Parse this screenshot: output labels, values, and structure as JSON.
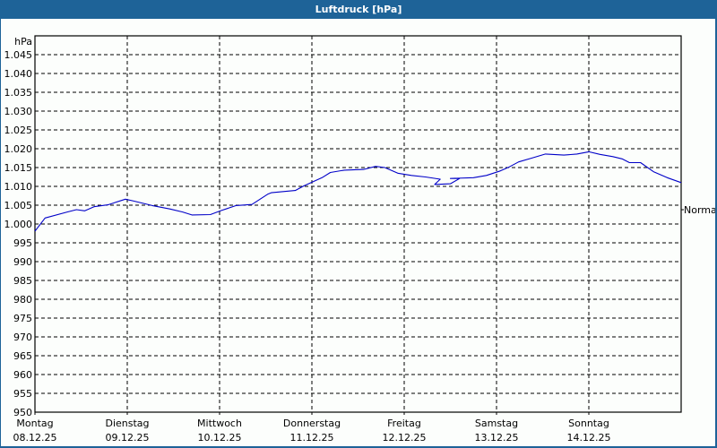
{
  "window": {
    "title": "Luftdruck [hPa]",
    "title_bar_color": "#1e6398",
    "background_color": "#fcfefc"
  },
  "chart_data": {
    "type": "line",
    "title": "Luftdruck [hPa]",
    "xlabel": "",
    "ylabel": "hPa",
    "ylim": [
      950,
      1045
    ],
    "y_ticks": [
      950,
      955,
      960,
      965,
      970,
      975,
      980,
      985,
      990,
      995,
      1000,
      1005,
      1010,
      1015,
      1020,
      1025,
      1030,
      1035,
      1040,
      1045
    ],
    "y_tick_labels": [
      "950",
      "955",
      "960",
      "965",
      "970",
      "975",
      "980",
      "985",
      "990",
      "995",
      "1.000",
      "1.005",
      "1.010",
      "1.015",
      "1.020",
      "1.025",
      "1.030",
      "1.035",
      "1.040",
      "1.045"
    ],
    "grid": true,
    "grid_style": "dashed",
    "legend": null,
    "x_categories": [
      {
        "day": "Montag",
        "date": "08.12.25"
      },
      {
        "day": "Dienstag",
        "date": "09.12.25"
      },
      {
        "day": "Mittwoch",
        "date": "10.12.25"
      },
      {
        "day": "Donnerstag",
        "date": "11.12.25"
      },
      {
        "day": "Freitag",
        "date": "12.12.25"
      },
      {
        "day": "Samstag",
        "date": "13.12.25"
      },
      {
        "day": "Sonntag",
        "date": "14.12.25"
      }
    ],
    "reference_line": {
      "label": "Normal",
      "value": 1003.8
    },
    "series": [
      {
        "name": "Luftdruck",
        "color": "#0000c8",
        "x_days": [
          0.0,
          0.11,
          0.35,
          0.45,
          0.54,
          0.64,
          0.79,
          0.98,
          1.07,
          1.27,
          1.46,
          1.6,
          1.7,
          1.9,
          2.02,
          2.18,
          2.35,
          2.52,
          2.56,
          2.82,
          2.91,
          3.11,
          3.2,
          3.35,
          3.56,
          3.69,
          3.79,
          3.93,
          4.08,
          4.23,
          4.39,
          4.33,
          4.5,
          4.6,
          4.5,
          4.75,
          4.89,
          5.04,
          5.14,
          5.24,
          5.38,
          5.53,
          5.73,
          5.87,
          6.0,
          6.12,
          6.26,
          6.36,
          6.44,
          6.56,
          6.7,
          6.85,
          7.0
        ],
        "values": [
          998.1,
          1001.6,
          1003.2,
          1003.8,
          1003.5,
          1004.6,
          1005.1,
          1006.6,
          1006.1,
          1004.9,
          1004.0,
          1003.2,
          1002.4,
          1002.5,
          1003.6,
          1004.9,
          1005.2,
          1007.9,
          1008.3,
          1008.9,
          1010.1,
          1012.3,
          1013.7,
          1014.3,
          1014.5,
          1015.3,
          1015.0,
          1013.5,
          1012.9,
          1012.5,
          1011.9,
          1010.5,
          1010.7,
          1012.1,
          1012.1,
          1012.3,
          1012.9,
          1014.1,
          1015.2,
          1016.5,
          1017.5,
          1018.6,
          1018.3,
          1018.6,
          1019.2,
          1018.5,
          1017.9,
          1017.3,
          1016.3,
          1016.3,
          1013.9,
          1012.3,
          1011.0
        ]
      }
    ]
  }
}
